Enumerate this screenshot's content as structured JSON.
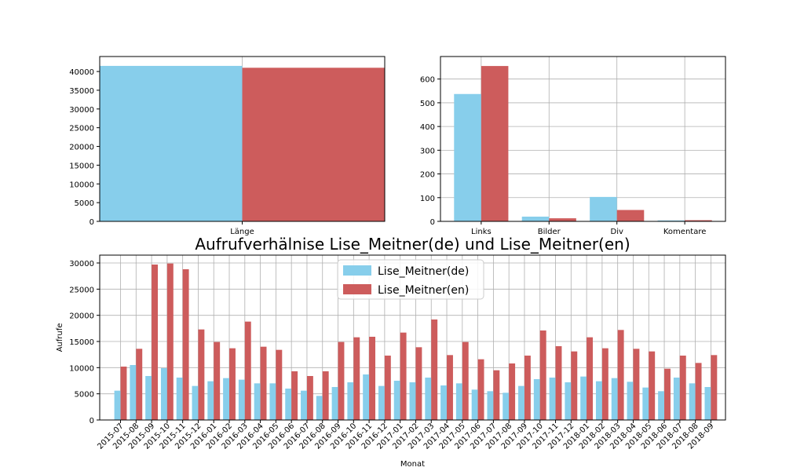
{
  "colors": {
    "de": "#87ceeb",
    "en": "#cd5c5c",
    "grid": "#b0b0b0",
    "axis": "#000000"
  },
  "chart_data": [
    {
      "type": "bar",
      "categories": [
        "Länge"
      ],
      "series": [
        {
          "values": [
            41500
          ],
          "color": "#87ceeb"
        },
        {
          "values": [
            41000
          ],
          "color": "#cd5c5c"
        }
      ],
      "ylim": [
        0,
        44000
      ],
      "yticks": [
        0,
        5000,
        10000,
        15000,
        20000,
        25000,
        30000,
        35000,
        40000
      ],
      "grid": true
    },
    {
      "type": "bar",
      "categories": [
        "Links",
        "Bilder",
        "Div",
        "Komentare"
      ],
      "series": [
        {
          "values": [
            537,
            20,
            103,
            4
          ],
          "color": "#87ceeb"
        },
        {
          "values": [
            655,
            13,
            48,
            5
          ],
          "color": "#cd5c5c"
        }
      ],
      "ylim": [
        0,
        695
      ],
      "yticks": [
        0,
        100,
        200,
        300,
        400,
        500,
        600
      ],
      "grid": true
    },
    {
      "type": "bar",
      "title": "Aufrufverhälnise Lise_Meitner(de) und Lise_Meitner(en)",
      "xlabel": "Monat",
      "ylabel": "Aufrufe",
      "categories": [
        "2015-07",
        "2015-08",
        "2015-09",
        "2015-10",
        "2015-11",
        "2015-12",
        "2016-01",
        "2016-02",
        "2016-03",
        "2016-04",
        "2016-05",
        "2016-06",
        "2016-07",
        "2016-08",
        "2016-09",
        "2016-10",
        "2016-11",
        "2016-12",
        "2017-01",
        "2017-02",
        "2017-03",
        "2017-04",
        "2017-05",
        "2017-06",
        "2017-07",
        "2017-08",
        "2017-09",
        "2017-10",
        "2017-11",
        "2017-12",
        "2018-01",
        "2018-02",
        "2018-03",
        "2018-04",
        "2018-05",
        "2018-06",
        "2018-07",
        "2018-08",
        "2018-09"
      ],
      "series": [
        {
          "name": "Lise_Meitner(de)",
          "color": "#87ceeb",
          "values": [
            5600,
            10500,
            8400,
            9900,
            8100,
            6500,
            7400,
            8000,
            7700,
            7000,
            7000,
            6000,
            5600,
            4600,
            6300,
            7200,
            8700,
            6500,
            7500,
            7200,
            8100,
            6600,
            7000,
            5800,
            5500,
            5200,
            6500,
            7800,
            8100,
            7200,
            8300,
            7400,
            8000,
            7300,
            6200,
            5500,
            8100,
            7000,
            6300
          ]
        },
        {
          "name": "Lise_Meitner(en)",
          "color": "#cd5c5c",
          "values": [
            10200,
            13600,
            29700,
            29900,
            28800,
            17300,
            14900,
            13700,
            18800,
            14000,
            13400,
            9300,
            8400,
            9300,
            14900,
            15800,
            15900,
            12300,
            16700,
            13900,
            19200,
            12400,
            14900,
            11600,
            9500,
            10800,
            12300,
            17100,
            14100,
            13100,
            15800,
            13700,
            17200,
            13600,
            13100,
            9800,
            12300,
            10900,
            12400
          ]
        }
      ],
      "ylim": [
        0,
        31500
      ],
      "yticks": [
        0,
        5000,
        10000,
        15000,
        20000,
        25000,
        30000
      ],
      "grid": true,
      "legend": "top-center"
    }
  ]
}
